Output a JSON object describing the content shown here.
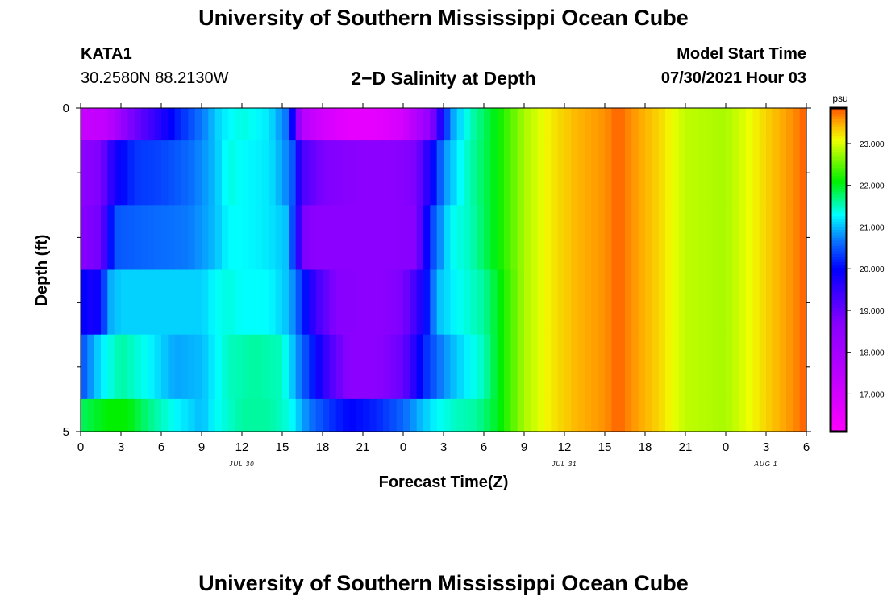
{
  "header": {
    "title": "University of Southern Mississippi Ocean Cube",
    "station_id": "KATA1",
    "coordinates": "30.2580N  88.2130W",
    "subtitle": "2−D Salinity at Depth",
    "model_start_label": "Model Start Time",
    "model_start_value": "07/30/2021 Hour 03"
  },
  "footer": {
    "title": "University of Southern Mississippi Ocean Cube"
  },
  "chart_data": {
    "type": "heatmap",
    "title": "2-D Salinity at Depth",
    "xlabel": "Forecast Time(Z)",
    "ylabel": "Depth (ft)",
    "x_range_hours": [
      0,
      54
    ],
    "y_range": [
      0,
      5
    ],
    "x_ticks": [
      {
        "hour": 0,
        "label": "0"
      },
      {
        "hour": 3,
        "label": "3"
      },
      {
        "hour": 6,
        "label": "6"
      },
      {
        "hour": 9,
        "label": "9"
      },
      {
        "hour": 12,
        "label": "12"
      },
      {
        "hour": 15,
        "label": "15"
      },
      {
        "hour": 18,
        "label": "18"
      },
      {
        "hour": 21,
        "label": "21"
      },
      {
        "hour": 24,
        "label": "0"
      },
      {
        "hour": 27,
        "label": "3"
      },
      {
        "hour": 30,
        "label": "6"
      },
      {
        "hour": 33,
        "label": "9"
      },
      {
        "hour": 36,
        "label": "12"
      },
      {
        "hour": 39,
        "label": "15"
      },
      {
        "hour": 42,
        "label": "18"
      },
      {
        "hour": 45,
        "label": "21"
      },
      {
        "hour": 48,
        "label": "0"
      },
      {
        "hour": 51,
        "label": "3"
      },
      {
        "hour": 54,
        "label": "6"
      }
    ],
    "date_labels": [
      {
        "hour": 12,
        "label": "JUL 30"
      },
      {
        "hour": 36,
        "label": "JUL 31"
      },
      {
        "hour": 51,
        "label": "AUG 1"
      }
    ],
    "y_ticks": [
      {
        "value": 0,
        "label": "0"
      },
      {
        "value": 5,
        "label": "5"
      }
    ],
    "y_minor_ticks": [
      1,
      2,
      3,
      4
    ],
    "colorbar": {
      "unit": "psu",
      "min": 16.1,
      "max": 23.85,
      "tick_values": [
        17.0,
        18.0,
        19.0,
        20.0,
        21.0,
        22.0,
        23.0
      ],
      "tick_labels": [
        "17.000",
        "18.000",
        "19.000",
        "20.000",
        "21.000",
        "22.000",
        "23.000"
      ],
      "stops": [
        {
          "value": 16.1,
          "color": "#ff00ff"
        },
        {
          "value": 17.3,
          "color": "#c400ff"
        },
        {
          "value": 18.7,
          "color": "#8800ff"
        },
        {
          "value": 20.0,
          "color": "#0000ff"
        },
        {
          "value": 20.7,
          "color": "#0a78ff"
        },
        {
          "value": 21.3,
          "color": "#00ffff"
        },
        {
          "value": 22.1,
          "color": "#00f000"
        },
        {
          "value": 23.1,
          "color": "#f0ff00"
        },
        {
          "value": 23.5,
          "color": "#ffaa00"
        },
        {
          "value": 23.85,
          "color": "#ff5500"
        }
      ]
    },
    "series": [
      {
        "depth_range": [
          0,
          0.5
        ],
        "hours": [
          0,
          2,
          3.5,
          5,
          7,
          9,
          10.5,
          12,
          14,
          15.5,
          16,
          16.5,
          18,
          20,
          22,
          24,
          26,
          27.5,
          29,
          31,
          33,
          35,
          37,
          39,
          40,
          41,
          43,
          45,
          48,
          51,
          53.5,
          54
        ],
        "values": [
          17.2,
          17.4,
          18.7,
          19.3,
          20.1,
          20.7,
          21.2,
          21.4,
          21.2,
          20.6,
          19.3,
          17.6,
          17.0,
          16.6,
          16.6,
          17.0,
          18.5,
          20.8,
          21.5,
          22.1,
          22.8,
          23.2,
          23.45,
          23.6,
          23.8,
          23.6,
          23.3,
          22.9,
          22.8,
          23.3,
          23.7,
          23.85
        ]
      },
      {
        "depth_range": [
          0.5,
          1.5
        ],
        "hours": [
          0,
          1.5,
          2.5,
          4,
          6,
          8,
          10,
          11,
          12,
          14,
          15,
          15.7,
          16.5,
          18,
          21,
          23,
          25,
          26,
          27,
          28.5,
          31,
          33,
          35,
          37,
          39,
          40,
          41,
          43,
          45,
          48,
          51,
          53.5,
          54
        ],
        "values": [
          18.6,
          18.8,
          19.8,
          20.3,
          20.4,
          20.6,
          21.0,
          21.4,
          21.3,
          21.2,
          20.9,
          20.6,
          19.3,
          18.8,
          18.6,
          18.6,
          18.8,
          19.8,
          20.8,
          21.4,
          22.1,
          22.8,
          23.2,
          23.45,
          23.6,
          23.8,
          23.6,
          23.3,
          22.9,
          22.8,
          23.3,
          23.7,
          23.85
        ]
      },
      {
        "depth_range": [
          1.5,
          2.5
        ],
        "hours": [
          0,
          1.5,
          2.5,
          5,
          8,
          10,
          11,
          12,
          14,
          15.5,
          16,
          16.8,
          18,
          22,
          25,
          26,
          27.5,
          29,
          31,
          33,
          35,
          37,
          39,
          40,
          41,
          43,
          45,
          48,
          51,
          53.5,
          54
        ],
        "values": [
          18.7,
          18.9,
          20.5,
          20.6,
          20.7,
          21.0,
          21.3,
          21.3,
          21.2,
          21.0,
          19.9,
          18.7,
          18.6,
          18.6,
          18.7,
          20.3,
          21.3,
          21.5,
          22.1,
          22.8,
          23.2,
          23.45,
          23.6,
          23.8,
          23.6,
          23.3,
          22.9,
          22.8,
          23.3,
          23.7,
          23.85
        ]
      },
      {
        "depth_range": [
          2.5,
          3.5
        ],
        "hours": [
          0,
          0.4,
          1.5,
          2,
          3,
          6,
          9,
          10,
          11,
          12,
          14,
          15.5,
          16.5,
          17.5,
          19,
          22,
          24,
          25.5,
          26.5,
          28,
          30,
          31,
          33,
          35,
          37,
          39,
          40,
          41,
          43,
          45,
          48,
          51,
          53.5,
          54
        ],
        "values": [
          20.3,
          19.8,
          19.9,
          20.9,
          21.1,
          21.1,
          21.1,
          21.3,
          21.4,
          21.3,
          21.3,
          21.0,
          20.3,
          19.4,
          18.7,
          18.6,
          18.8,
          19.8,
          21.0,
          21.3,
          21.6,
          22.0,
          22.8,
          23.2,
          23.45,
          23.6,
          23.8,
          23.6,
          23.3,
          22.9,
          22.8,
          23.3,
          23.7,
          23.85
        ]
      },
      {
        "depth_range": [
          3.5,
          4.5
        ],
        "hours": [
          0,
          0.5,
          1.5,
          3,
          5,
          7,
          9,
          11,
          13,
          15,
          16.5,
          17.5,
          18.5,
          20,
          22,
          24,
          25.5,
          27,
          28.5,
          30,
          31,
          33,
          35,
          37,
          39,
          40,
          41,
          43,
          45,
          48,
          51,
          53.5,
          54
        ],
        "values": [
          20.4,
          20.7,
          21.2,
          21.6,
          21.3,
          20.9,
          21.0,
          21.5,
          21.6,
          21.5,
          20.6,
          20.0,
          19.3,
          18.6,
          18.6,
          19.0,
          20.2,
          20.8,
          21.2,
          21.5,
          22.0,
          22.8,
          23.2,
          23.45,
          23.6,
          23.8,
          23.6,
          23.3,
          22.9,
          22.8,
          23.3,
          23.7,
          23.85
        ]
      },
      {
        "depth_range": [
          4.5,
          5
        ],
        "hours": [
          0,
          2,
          3.5,
          5,
          7,
          9,
          10,
          12,
          14,
          15.5,
          17,
          18.5,
          20,
          22,
          24,
          25,
          26.5,
          28,
          29.5,
          31,
          33,
          35,
          37,
          39,
          40,
          41,
          43,
          45,
          48,
          51,
          53.5,
          54
        ],
        "values": [
          21.8,
          22.1,
          22.1,
          21.7,
          21.3,
          21.0,
          21.3,
          21.6,
          21.6,
          21.4,
          20.7,
          20.3,
          20.0,
          20.2,
          20.6,
          20.9,
          21.3,
          21.5,
          21.6,
          22.0,
          22.8,
          23.2,
          23.45,
          23.6,
          23.8,
          23.6,
          23.3,
          22.9,
          22.8,
          23.3,
          23.7,
          23.85
        ]
      }
    ]
  }
}
